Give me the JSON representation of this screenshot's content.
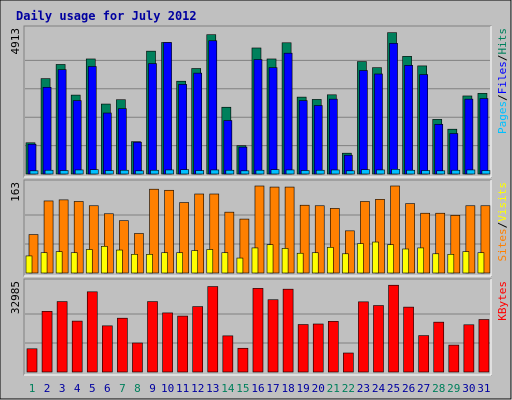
{
  "chart_data": {
    "type": "bar",
    "title": "Daily usage for July 2012",
    "days": [
      "1",
      "2",
      "3",
      "4",
      "5",
      "6",
      "7",
      "8",
      "9",
      "10",
      "11",
      "12",
      "13",
      "14",
      "15",
      "16",
      "17",
      "18",
      "19",
      "20",
      "21",
      "22",
      "23",
      "24",
      "25",
      "26",
      "27",
      "28",
      "29",
      "30",
      "31"
    ],
    "weekend_days": [
      1,
      7,
      8,
      14,
      15,
      21,
      22,
      28,
      29
    ],
    "colors": {
      "frame_bg": "#c0c0c0",
      "hits": "#00805c",
      "files": "#0000ff",
      "pages": "#00c0ff",
      "visits": "#ff8000",
      "sites": "#ffff00",
      "kbytes": "#ff0000",
      "title": "#0000a0",
      "day_label": "#0000a0",
      "weekend_label": "#00805c"
    },
    "panels": [
      {
        "name": "hits-files-pages",
        "ymax_label": "4913",
        "ymax": 4913,
        "legend": [
          {
            "text": "Pages",
            "color": "#00c0ff"
          },
          {
            "text": "/",
            "color": "#000000"
          },
          {
            "text": "Files",
            "color": "#0000ff"
          },
          {
            "text": "/",
            "color": "#000000"
          },
          {
            "text": "Hits",
            "color": "#00805c"
          }
        ],
        "series": [
          {
            "name": "Hits",
            "color": "#00805c",
            "values": [
              1080,
              3300,
              3790,
              2730,
              3980,
              2420,
              2570,
              1120,
              4250,
              4550,
              3210,
              3650,
              4820,
              2310,
              980,
              4360,
              3980,
              4540,
              2660,
              2580,
              2740,
              720,
              3890,
              3680,
              4890,
              4070,
              3740,
              1890,
              1550,
              2700,
              2790
            ]
          },
          {
            "name": "Files",
            "color": "#0000ff",
            "values": [
              1030,
              3000,
              3610,
              2540,
              3720,
              2110,
              2260,
              1100,
              3820,
              4550,
              3100,
              3490,
              4610,
              1850,
              930,
              3960,
              3680,
              4180,
              2540,
              2370,
              2590,
              650,
              3580,
              3460,
              4520,
              3760,
              3440,
              1720,
              1400,
              2590,
              2610
            ]
          },
          {
            "name": "Pages",
            "color": "#00c0ff",
            "values": [
              110,
              130,
              120,
              140,
              150,
              120,
              130,
              110,
              130,
              140,
              150,
              120,
              140,
              130,
              110,
              130,
              150,
              140,
              120,
              130,
              140,
              110,
              150,
              140,
              160,
              130,
              120,
              110,
              130,
              140,
              120
            ]
          }
        ]
      },
      {
        "name": "visits-sites",
        "ymax_label": "163",
        "ymax": 163,
        "legend": [
          {
            "text": "Sites",
            "color": "#ff8000"
          },
          {
            "text": "/",
            "color": "#000000"
          },
          {
            "text": "Visits",
            "color": "#ffff00"
          }
        ],
        "series": [
          {
            "name": "Visits",
            "color": "#ff8000",
            "values": [
              72,
              135,
              137,
              134,
              126,
              111,
              98,
              74,
              157,
              155,
              132,
              148,
              148,
              114,
              101,
              163,
              161,
              161,
              127,
              126,
              121,
              79,
              134,
              138,
              163,
              130,
              112,
              112,
              108,
              126,
              126
            ]
          },
          {
            "name": "Sites",
            "color": "#ffff00",
            "values": [
              32,
              38,
              40,
              38,
              44,
              50,
              43,
              35,
              35,
              38,
              38,
              42,
              44,
              38,
              28,
              47,
              53,
              46,
              37,
              38,
              48,
              36,
              55,
              58,
              53,
              45,
              47,
              36,
              35,
              40,
              38
            ]
          }
        ]
      },
      {
        "name": "kbytes",
        "ymax_label": "32985",
        "ymax": 32985,
        "legend": [
          {
            "text": "KBytes",
            "color": "#ff0000"
          }
        ],
        "series": [
          {
            "name": "KBytes",
            "color": "#ff0000",
            "values": [
              8800,
              23000,
              26700,
              19300,
              30400,
              17500,
              20400,
              11000,
              26700,
              22400,
              21200,
              24800,
              32400,
              13700,
              9000,
              31700,
              27400,
              31400,
              18000,
              18200,
              19200,
              7200,
              26600,
              25200,
              32900,
              24600,
              13800,
              18900,
              10200,
              17900,
              19900
            ]
          }
        ]
      }
    ]
  }
}
